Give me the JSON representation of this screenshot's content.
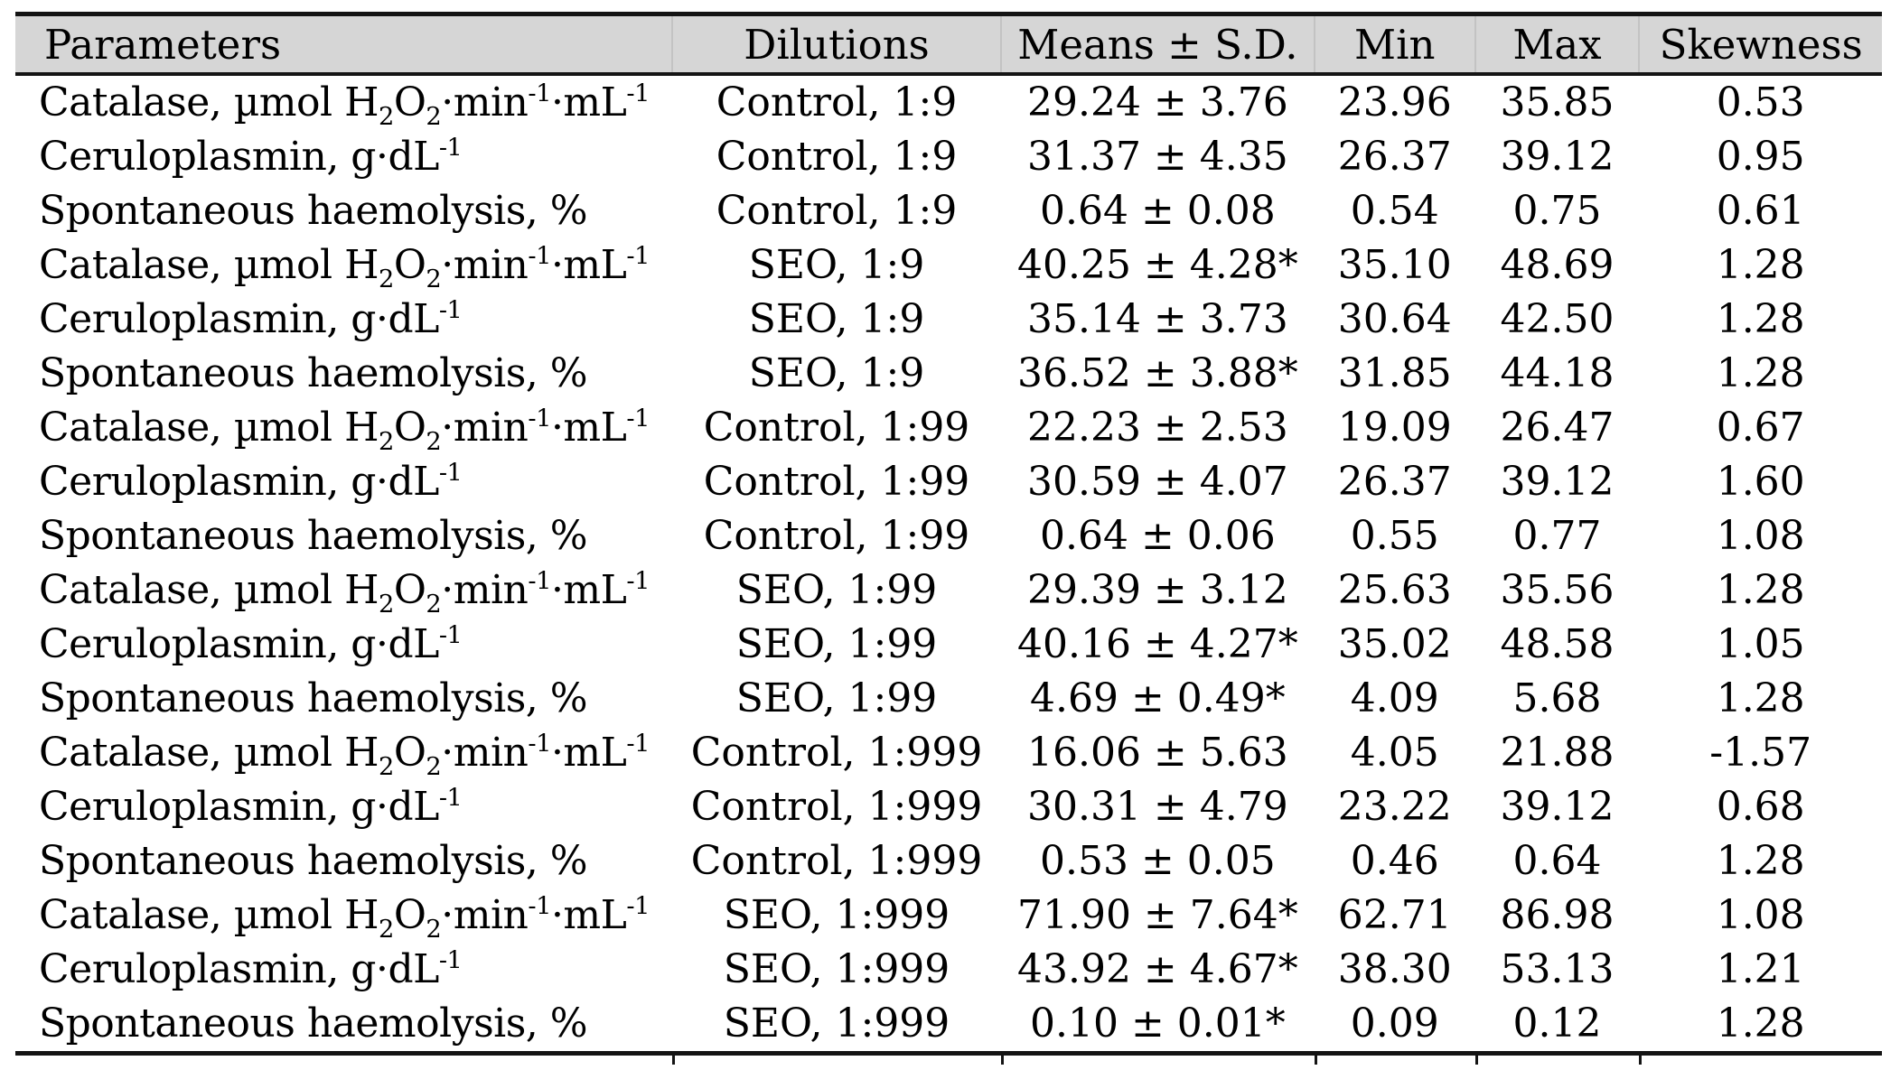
{
  "table": {
    "columns": [
      {
        "label": "Parameters"
      },
      {
        "label": "Dilutions"
      },
      {
        "label": "Means ± S.D."
      },
      {
        "label": "Min"
      },
      {
        "label": "Max"
      },
      {
        "label": "Skewness"
      }
    ],
    "rows": [
      [
        "Catalase, µmol H~2~O~2~·min^-1^·mL^-1^",
        "Control, 1:9",
        "29.24 ± 3.76",
        "23.96",
        "35.85",
        "0.53"
      ],
      [
        "Ceruloplasmin, g·dL^-1^",
        "Control, 1:9",
        "31.37 ± 4.35",
        "26.37",
        "39.12",
        "0.95"
      ],
      [
        "Spontaneous haemolysis, %",
        "Control, 1:9",
        "0.64 ± 0.08",
        "0.54",
        "0.75",
        "0.61"
      ],
      [
        "Catalase, µmol H~2~O~2~·min^-1^·mL^-1^",
        "SEO, 1:9",
        "40.25 ± 4.28*",
        "35.10",
        "48.69",
        "1.28"
      ],
      [
        "Ceruloplasmin, g·dL^-1^",
        "SEO, 1:9",
        "35.14 ± 3.73",
        "30.64",
        "42.50",
        "1.28"
      ],
      [
        "Spontaneous haemolysis, %",
        "SEO, 1:9",
        "36.52 ± 3.88*",
        "31.85",
        "44.18",
        "1.28"
      ],
      [
        "Catalase, µmol H~2~O~2~·min^-1^·mL^-1^",
        "Control, 1:99",
        "22.23 ± 2.53",
        "19.09",
        "26.47",
        "0.67"
      ],
      [
        "Ceruloplasmin, g·dL^-1^",
        "Control, 1:99",
        "30.59 ± 4.07",
        "26.37",
        "39.12",
        "1.60"
      ],
      [
        "Spontaneous haemolysis, %",
        "Control, 1:99",
        "0.64 ± 0.06",
        "0.55",
        "0.77",
        "1.08"
      ],
      [
        "Catalase, µmol H~2~O~2~·min^-1^·mL^-1^",
        "SEO, 1:99",
        "29.39 ± 3.12",
        "25.63",
        "35.56",
        "1.28"
      ],
      [
        "Ceruloplasmin, g·dL^-1^",
        "SEO, 1:99",
        "40.16 ± 4.27*",
        "35.02",
        "48.58",
        "1.05"
      ],
      [
        "Spontaneous haemolysis, %",
        "SEO, 1:99",
        "4.69 ± 0.49*",
        "4.09",
        "5.68",
        "1.28"
      ],
      [
        "Catalase, µmol H~2~O~2~·min^-1^·mL^-1^",
        "Control, 1:999",
        "16.06 ± 5.63",
        "4.05",
        "21.88",
        "-1.57"
      ],
      [
        "Ceruloplasmin, g·dL^-1^",
        "Control, 1:999",
        "30.31 ± 4.79",
        "23.22",
        "39.12",
        "0.68"
      ],
      [
        "Spontaneous haemolysis, %",
        "Control, 1:999",
        "0.53 ± 0.05",
        "0.46",
        "0.64",
        "1.28"
      ],
      [
        "Catalase, µmol H~2~O~2~·min^-1^·mL^-1^",
        "SEO, 1:999",
        "71.90 ± 7.64*",
        "62.71",
        "86.98",
        "1.08"
      ],
      [
        "Ceruloplasmin, g·dL^-1^",
        "SEO, 1:999",
        "43.92 ± 4.67*",
        "38.30",
        "53.13",
        "1.21"
      ],
      [
        "Spontaneous haemolysis, %",
        "SEO, 1:999",
        "0.10 ± 0.01*",
        "0.09",
        "0.12",
        "1.28"
      ]
    ]
  },
  "colors": {
    "header_background": "#d6d6d6",
    "border": "#141414",
    "header_divider": "#c3c3c3",
    "text": "#000000",
    "page_background": "#ffffff"
  }
}
